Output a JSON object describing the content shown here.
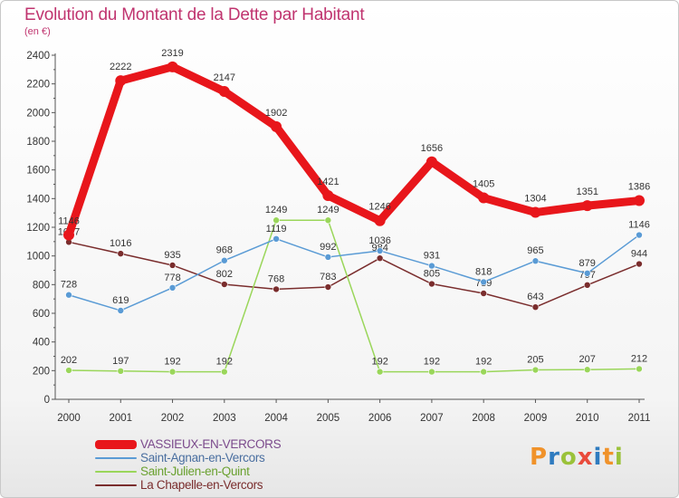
{
  "title": "Evolution du Montant de la Dette par Habitant",
  "subtitle": "(en €)",
  "logo": {
    "text": "Proxiti",
    "colors": [
      "#f0922a",
      "#2f7bbf",
      "#9bc23a",
      "#e94b3c",
      "#2f7bbf",
      "#f0922a",
      "#9bc23a"
    ]
  },
  "colors": {
    "title": "#c0346f",
    "axis": "#555555",
    "label": "#333333"
  },
  "chart_data": {
    "type": "line",
    "title": "Evolution du Montant de la Dette par Habitant",
    "xlabel": "",
    "ylabel": "(en €)",
    "x": [
      "2000",
      "2001",
      "2002",
      "2003",
      "2004",
      "2005",
      "2006",
      "2007",
      "2008",
      "2009",
      "2010",
      "2011"
    ],
    "ylim": [
      0,
      2400
    ],
    "yticks": [
      0,
      200,
      400,
      600,
      800,
      1000,
      1200,
      1400,
      1600,
      1800,
      2000,
      2200,
      2400
    ],
    "grid": false,
    "legend_position": "bottom-left",
    "series": [
      {
        "name": "VASSIEUX-EN-VERCORS",
        "color": "#e8161b",
        "label_color": "#7b4a8c",
        "width": 9,
        "marker": 6,
        "values": [
          1146,
          2222,
          2319,
          2147,
          1902,
          1421,
          1246,
          1656,
          1405,
          1304,
          1351,
          1386
        ]
      },
      {
        "name": "Saint-Agnan-en-Vercors",
        "color": "#5a9bd5",
        "label_color": "#4a6fa0",
        "width": 1.5,
        "marker": 3.5,
        "values": [
          728,
          619,
          778,
          968,
          1119,
          992,
          1036,
          931,
          818,
          965,
          879,
          1146
        ]
      },
      {
        "name": "Saint-Julien-en-Quint",
        "color": "#9ad65a",
        "label_color": "#6aa130",
        "width": 1.5,
        "marker": 3.5,
        "values": [
          202,
          197,
          192,
          192,
          1249,
          1249,
          192,
          192,
          192,
          205,
          207,
          212
        ]
      },
      {
        "name": "La Chapelle-en-Vercors",
        "color": "#7a2d2d",
        "label_color": "#7a2d2d",
        "width": 1.5,
        "marker": 3.5,
        "values": [
          1097,
          1016,
          935,
          802,
          768,
          783,
          984,
          805,
          739,
          643,
          797,
          944
        ]
      }
    ]
  }
}
